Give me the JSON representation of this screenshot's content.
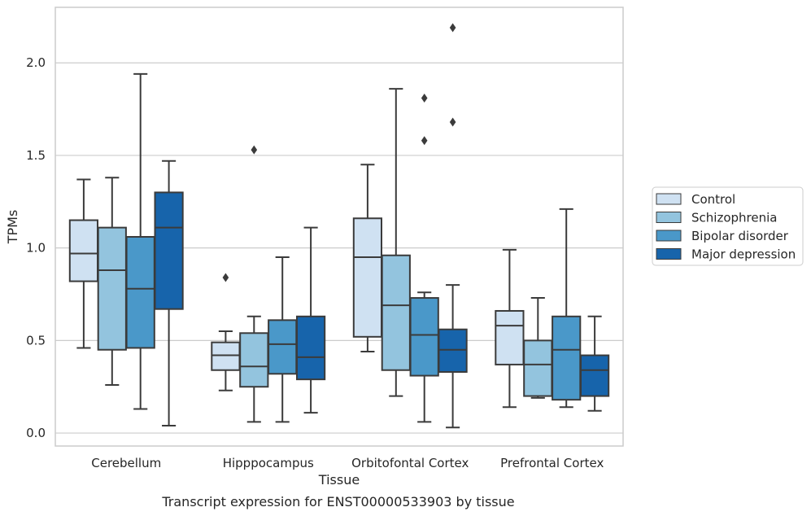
{
  "caption": "Transcript expression for ENST00000533903 by tissue",
  "colors": {
    "Control": "#cfe1f2",
    "Schizophrenia": "#93c4de",
    "Bipolar disorder": "#4a98c9",
    "Major depression": "#1764ab",
    "grid": "#cccccc",
    "frame": "#cccccc",
    "line": "#3b3b3b"
  },
  "chart_data": {
    "type": "box",
    "xlabel": "Tissue",
    "ylabel": "TPMs",
    "ylim": [
      -0.07,
      2.3
    ],
    "yticks": [
      "0.0",
      "0.5",
      "1.0",
      "1.5",
      "2.0"
    ],
    "ytick_values": [
      0.0,
      0.5,
      1.0,
      1.5,
      2.0
    ],
    "grid": true,
    "legend_position": "right",
    "categories": [
      "Cerebellum",
      "Hipppocampus",
      "Orbitofontal Cortex",
      "Prefrontal Cortex"
    ],
    "series": [
      {
        "name": "Control",
        "boxes": [
          {
            "whislo": 0.46,
            "q1": 0.82,
            "med": 0.97,
            "q3": 1.15,
            "whishi": 1.37,
            "fliers": []
          },
          {
            "whislo": 0.23,
            "q1": 0.34,
            "med": 0.42,
            "q3": 0.49,
            "whishi": 0.55,
            "fliers": [
              0.84
            ]
          },
          {
            "whislo": 0.44,
            "q1": 0.52,
            "med": 0.95,
            "q3": 1.16,
            "whishi": 1.45,
            "fliers": []
          },
          {
            "whislo": 0.14,
            "q1": 0.37,
            "med": 0.58,
            "q3": 0.66,
            "whishi": 0.99,
            "fliers": []
          }
        ]
      },
      {
        "name": "Schizophrenia",
        "boxes": [
          {
            "whislo": 0.26,
            "q1": 0.45,
            "med": 0.88,
            "q3": 1.11,
            "whishi": 1.38,
            "fliers": []
          },
          {
            "whislo": 0.06,
            "q1": 0.25,
            "med": 0.36,
            "q3": 0.54,
            "whishi": 0.63,
            "fliers": [
              1.53
            ]
          },
          {
            "whislo": 0.2,
            "q1": 0.34,
            "med": 0.69,
            "q3": 0.96,
            "whishi": 1.86,
            "fliers": []
          },
          {
            "whislo": 0.19,
            "q1": 0.2,
            "med": 0.37,
            "q3": 0.5,
            "whishi": 0.73,
            "fliers": []
          }
        ]
      },
      {
        "name": "Bipolar disorder",
        "boxes": [
          {
            "whislo": 0.13,
            "q1": 0.46,
            "med": 0.78,
            "q3": 1.06,
            "whishi": 1.94,
            "fliers": []
          },
          {
            "whislo": 0.06,
            "q1": 0.32,
            "med": 0.48,
            "q3": 0.61,
            "whishi": 0.95,
            "fliers": []
          },
          {
            "whislo": 0.06,
            "q1": 0.31,
            "med": 0.53,
            "q3": 0.73,
            "whishi": 0.76,
            "fliers": [
              1.58,
              1.81
            ]
          },
          {
            "whislo": 0.14,
            "q1": 0.18,
            "med": 0.45,
            "q3": 0.63,
            "whishi": 1.21,
            "fliers": []
          }
        ]
      },
      {
        "name": "Major depression",
        "boxes": [
          {
            "whislo": 0.04,
            "q1": 0.67,
            "med": 1.11,
            "q3": 1.3,
            "whishi": 1.47,
            "fliers": []
          },
          {
            "whislo": 0.11,
            "q1": 0.29,
            "med": 0.41,
            "q3": 0.63,
            "whishi": 1.11,
            "fliers": []
          },
          {
            "whislo": 0.03,
            "q1": 0.33,
            "med": 0.45,
            "q3": 0.56,
            "whishi": 0.8,
            "fliers": [
              1.68,
              2.19
            ]
          },
          {
            "whislo": 0.12,
            "q1": 0.2,
            "med": 0.34,
            "q3": 0.42,
            "whishi": 0.63,
            "fliers": []
          }
        ]
      }
    ]
  }
}
